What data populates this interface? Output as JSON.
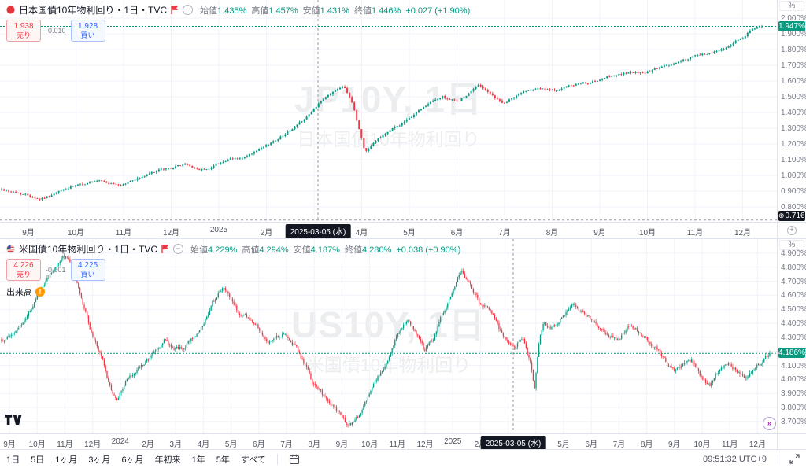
{
  "meta": {
    "clock": "09:51:32 UTC+9"
  },
  "footer": {
    "ranges": [
      "1日",
      "5日",
      "1ヶ月",
      "3ヶ月",
      "6ヶ月",
      "年初来",
      "1年",
      "5年",
      "すべて"
    ],
    "icons": {
      "date_range": "calendar-icon",
      "fullscreen": "fullscreen-arrows-icon"
    }
  },
  "charts": [
    {
      "title": "日本国債10年物利回り・1日・TVC",
      "unit": "%",
      "ohlc": {
        "o_label": "始値",
        "o": "1.435%",
        "h_label": "高値",
        "h": "1.457%",
        "l_label": "安値",
        "l": "1.431%",
        "c_label": "終値",
        "c": "1.446%",
        "change": "+0.027 (+1.90%)"
      },
      "trade": {
        "sell": "1.938",
        "sell_label": "売り",
        "spread": "-0.010",
        "buy": "1.928",
        "buy_label": "買い"
      },
      "watermark1": "JP10Y, 1日",
      "watermark2": "日本国債10年物利回り",
      "last_price_label": "1.947%",
      "cross_price_label": "0.716%",
      "cross_date_label": "2025-03-05 (水)",
      "icons": {
        "flag_left": "japan-flag",
        "flag_red": "flag",
        "legend_toggle": "circle-minus"
      }
    },
    {
      "title": "米国債10年物利回り・1日・TVC",
      "unit": "%",
      "ohlc": {
        "o_label": "始値",
        "o": "4.229%",
        "h_label": "高値",
        "h": "4.294%",
        "l_label": "安値",
        "l": "4.187%",
        "c_label": "終値",
        "c": "4.280%",
        "change": "+0.038 (+0.90%)"
      },
      "trade": {
        "sell": "4.226",
        "sell_label": "売り",
        "spread": "-0.001",
        "buy": "4.225",
        "buy_label": "買い"
      },
      "volume": {
        "label": "出来高",
        "warning": "!"
      },
      "watermark1": "US10Y, 1日",
      "watermark2": "米国債10年物利回り",
      "last_price_label": "4.186%",
      "cross_date_label": "2025-03-05 (水)",
      "icons": {
        "flag_left": "us-flag",
        "flag_red": "flag",
        "legend_toggle": "circle-minus",
        "goto_realtime": "double-arrow-right"
      }
    }
  ],
  "chart_data": [
    {
      "type": "candlestick",
      "symbol": "JP10Y",
      "name": "日本国債10年物利回り",
      "interval": "1日",
      "exchange": "TVC",
      "unit": "%",
      "ohlc_at_crosshair": {
        "date": "2025-03-05 (水)",
        "open": 1.435,
        "high": 1.457,
        "low": 1.431,
        "close": 1.446,
        "change": "+0.027",
        "change_pct": "+1.90%"
      },
      "last_price": 1.9475,
      "crosshair_axis_price": 0.716,
      "y_ticks": [
        "2.000%",
        "1.900%",
        "1.800%",
        "1.700%",
        "1.600%",
        "1.500%",
        "1.400%",
        "1.300%",
        "1.200%",
        "1.100%",
        "1.000%",
        "0.900%",
        "0.800%"
      ],
      "y_range": [
        0.705,
        2.115
      ],
      "x_ticks": [
        "9月",
        "10月",
        "11月",
        "12月",
        "2025",
        "2月",
        "3月",
        "4月",
        "5月",
        "6月",
        "7月",
        "8月",
        "9月",
        "10月",
        "11月",
        "12月"
      ],
      "colors": {
        "up": "#089981",
        "down": "#f23645",
        "grid": "#f0f3fa",
        "crosshair": "#9598a1"
      },
      "trend_anchors": [
        [
          0.0,
          0.91
        ],
        [
          0.015,
          0.895
        ],
        [
          0.032,
          0.878
        ],
        [
          0.05,
          0.85
        ],
        [
          0.065,
          0.872
        ],
        [
          0.08,
          0.905
        ],
        [
          0.095,
          0.93
        ],
        [
          0.115,
          0.952
        ],
        [
          0.13,
          0.962
        ],
        [
          0.145,
          0.945
        ],
        [
          0.158,
          0.938
        ],
        [
          0.175,
          0.975
        ],
        [
          0.19,
          1.0
        ],
        [
          0.205,
          1.03
        ],
        [
          0.221,
          1.045
        ],
        [
          0.24,
          1.072
        ],
        [
          0.258,
          1.04
        ],
        [
          0.27,
          1.035
        ],
        [
          0.283,
          1.075
        ],
        [
          0.3,
          1.1
        ],
        [
          0.32,
          1.112
        ],
        [
          0.346,
          1.18
        ],
        [
          0.365,
          1.24
        ],
        [
          0.385,
          1.305
        ],
        [
          0.4,
          1.37
        ],
        [
          0.409,
          1.405
        ],
        [
          0.415,
          1.446
        ],
        [
          0.428,
          1.5
        ],
        [
          0.44,
          1.545
        ],
        [
          0.45,
          1.575
        ],
        [
          0.46,
          1.48
        ],
        [
          0.47,
          1.3
        ],
        [
          0.478,
          1.148
        ],
        [
          0.488,
          1.2
        ],
        [
          0.5,
          1.255
        ],
        [
          0.515,
          1.3
        ],
        [
          0.535,
          1.352
        ],
        [
          0.55,
          1.42
        ],
        [
          0.565,
          1.465
        ],
        [
          0.58,
          1.5
        ],
        [
          0.598,
          1.468
        ],
        [
          0.612,
          1.505
        ],
        [
          0.628,
          1.58
        ],
        [
          0.642,
          1.52
        ],
        [
          0.661,
          1.455
        ],
        [
          0.675,
          1.5
        ],
        [
          0.69,
          1.54
        ],
        [
          0.705,
          1.56
        ],
        [
          0.723,
          1.535
        ],
        [
          0.74,
          1.558
        ],
        [
          0.76,
          1.58
        ],
        [
          0.786,
          1.6
        ],
        [
          0.805,
          1.64
        ],
        [
          0.825,
          1.65
        ],
        [
          0.849,
          1.656
        ],
        [
          0.87,
          1.69
        ],
        [
          0.89,
          1.72
        ],
        [
          0.912,
          1.755
        ],
        [
          0.93,
          1.775
        ],
        [
          0.95,
          1.806
        ],
        [
          0.965,
          1.85
        ],
        [
          0.975,
          1.88
        ],
        [
          0.99,
          1.935
        ],
        [
          1.0,
          1.9475
        ]
      ]
    },
    {
      "type": "candlestick",
      "symbol": "US10Y",
      "name": "米国債10年物利回り",
      "interval": "1日",
      "exchange": "TVC",
      "unit": "%",
      "ohlc_at_crosshair": {
        "date": "2025-03-05 (水)",
        "open": 4.229,
        "high": 4.294,
        "low": 4.187,
        "close": 4.28,
        "change": "+0.038",
        "change_pct": "+0.90%"
      },
      "last_price": 4.186,
      "y_ticks": [
        "4.900%",
        "4.800%",
        "4.700%",
        "4.600%",
        "4.500%",
        "4.400%",
        "4.300%",
        "4.200%",
        "4.100%",
        "4.000%",
        "3.900%",
        "3.800%",
        "3.700%"
      ],
      "y_range": [
        3.615,
        5.0
      ],
      "x_ticks": [
        "9月",
        "10月",
        "11月",
        "12月",
        "2024",
        "2月",
        "3月",
        "4月",
        "5月",
        "6月",
        "7月",
        "8月",
        "9月",
        "10月",
        "11月",
        "12月",
        "2025",
        "2月",
        "3月",
        "4月",
        "5月",
        "6月",
        "7月",
        "8月",
        "9月",
        "10月",
        "11月",
        "12月"
      ],
      "colors": {
        "up": "#089981",
        "down": "#f23645",
        "grid": "#f0f3fa",
        "crosshair": "#9598a1"
      },
      "trend_anchors": [
        [
          0.0,
          4.28
        ],
        [
          0.015,
          4.33
        ],
        [
          0.03,
          4.42
        ],
        [
          0.043,
          4.55
        ],
        [
          0.055,
          4.68
        ],
        [
          0.068,
          4.79
        ],
        [
          0.08,
          4.87
        ],
        [
          0.09,
          4.84
        ],
        [
          0.1,
          4.65
        ],
        [
          0.116,
          4.35
        ],
        [
          0.13,
          4.15
        ],
        [
          0.143,
          3.92
        ],
        [
          0.15,
          3.85
        ],
        [
          0.16,
          3.97
        ],
        [
          0.175,
          4.06
        ],
        [
          0.188,
          4.12
        ],
        [
          0.2,
          4.2
        ],
        [
          0.212,
          4.28
        ],
        [
          0.224,
          4.21
        ],
        [
          0.238,
          4.23
        ],
        [
          0.25,
          4.3
        ],
        [
          0.262,
          4.38
        ],
        [
          0.275,
          4.55
        ],
        [
          0.288,
          4.66
        ],
        [
          0.297,
          4.58
        ],
        [
          0.31,
          4.47
        ],
        [
          0.322,
          4.43
        ],
        [
          0.333,
          4.38
        ],
        [
          0.345,
          4.26
        ],
        [
          0.357,
          4.29
        ],
        [
          0.369,
          4.34
        ],
        [
          0.382,
          4.24
        ],
        [
          0.395,
          4.1
        ],
        [
          0.405,
          3.98
        ],
        [
          0.42,
          3.88
        ],
        [
          0.435,
          3.78
        ],
        [
          0.45,
          3.68
        ],
        [
          0.46,
          3.7
        ],
        [
          0.47,
          3.78
        ],
        [
          0.485,
          3.98
        ],
        [
          0.5,
          4.1
        ],
        [
          0.514,
          4.3
        ],
        [
          0.528,
          4.42
        ],
        [
          0.54,
          4.33
        ],
        [
          0.55,
          4.21
        ],
        [
          0.562,
          4.28
        ],
        [
          0.575,
          4.48
        ],
        [
          0.586,
          4.6
        ],
        [
          0.598,
          4.78
        ],
        [
          0.61,
          4.68
        ],
        [
          0.622,
          4.54
        ],
        [
          0.635,
          4.5
        ],
        [
          0.648,
          4.36
        ],
        [
          0.658,
          4.28
        ],
        [
          0.668,
          4.22
        ],
        [
          0.678,
          4.3
        ],
        [
          0.688,
          4.12
        ],
        [
          0.694,
          3.94
        ],
        [
          0.7,
          4.28
        ],
        [
          0.706,
          4.42
        ],
        [
          0.715,
          4.35
        ],
        [
          0.731,
          4.45
        ],
        [
          0.743,
          4.55
        ],
        [
          0.755,
          4.48
        ],
        [
          0.767,
          4.42
        ],
        [
          0.78,
          4.36
        ],
        [
          0.795,
          4.3
        ],
        [
          0.803,
          4.28
        ],
        [
          0.815,
          4.38
        ],
        [
          0.828,
          4.35
        ],
        [
          0.839,
          4.28
        ],
        [
          0.852,
          4.23
        ],
        [
          0.865,
          4.12
        ],
        [
          0.876,
          4.05
        ],
        [
          0.888,
          4.11
        ],
        [
          0.898,
          4.14
        ],
        [
          0.912,
          4.0
        ],
        [
          0.922,
          3.96
        ],
        [
          0.935,
          4.08
        ],
        [
          0.948,
          4.11
        ],
        [
          0.958,
          4.05
        ],
        [
          0.968,
          4.0
        ],
        [
          0.978,
          4.06
        ],
        [
          0.99,
          4.12
        ],
        [
          1.0,
          4.186
        ]
      ]
    }
  ]
}
